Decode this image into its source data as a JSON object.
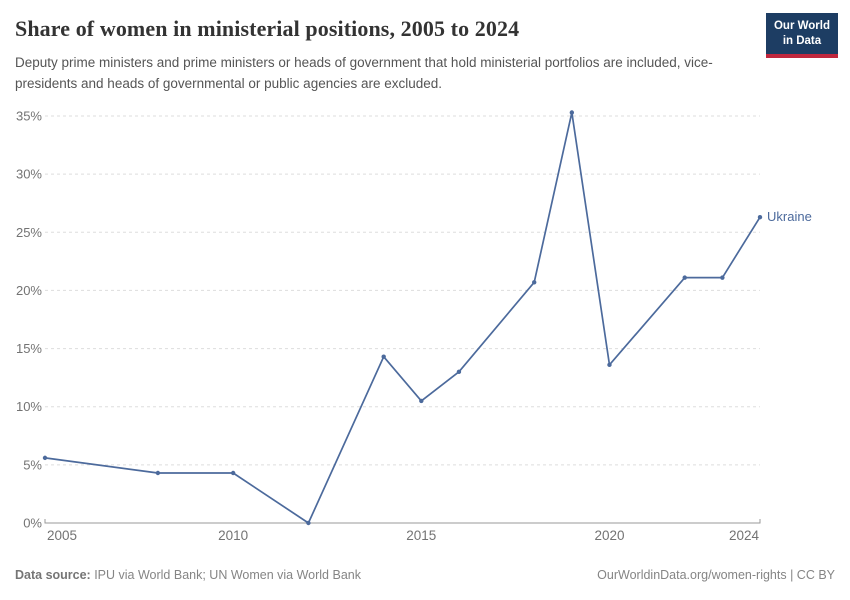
{
  "header": {
    "title": "Share of women in ministerial positions, 2005 to 2024",
    "subtitle": "Deputy prime ministers and prime ministers or heads of government that hold ministerial portfolios are included, vice-presidents and heads of governmental or public agencies are excluded.",
    "logo": {
      "line1": "Our World",
      "line2": "in Data",
      "bg_color": "#1d3d63",
      "accent_color": "#c0273d"
    }
  },
  "chart_data": {
    "type": "line",
    "title": "Share of women in ministerial positions, 2005 to 2024",
    "xlabel": "",
    "ylabel": "",
    "xlim": [
      2005,
      2024
    ],
    "ylim": [
      0,
      35
    ],
    "x_ticks": [
      2005,
      2010,
      2015,
      2020,
      2024
    ],
    "y_ticks": [
      0,
      5,
      10,
      15,
      20,
      25,
      30,
      35
    ],
    "y_tick_suffix": "%",
    "grid": "horizontal-dashed",
    "legend_position": "end-of-line-label",
    "colors": {
      "grid": "#dddddd",
      "axis": "#999999",
      "tick_text": "#737373"
    },
    "series": [
      {
        "name": "Ukraine",
        "color": "#4C6A9C",
        "points": [
          [
            2005,
            5.6
          ],
          [
            2008,
            4.3
          ],
          [
            2010,
            4.3
          ],
          [
            2012,
            0
          ],
          [
            2014,
            14.3
          ],
          [
            2015,
            10.5
          ],
          [
            2016,
            13.0
          ],
          [
            2018,
            20.7
          ],
          [
            2019,
            35.3
          ],
          [
            2020,
            13.6
          ],
          [
            2022,
            21.1
          ],
          [
            2023,
            21.1
          ],
          [
            2024,
            26.3
          ]
        ]
      }
    ]
  },
  "footer": {
    "source_label": "Data source:",
    "source_text": " IPU via World Bank; UN Women via World Bank",
    "link_text": "OurWorldinData.org/women-rights | CC BY"
  }
}
